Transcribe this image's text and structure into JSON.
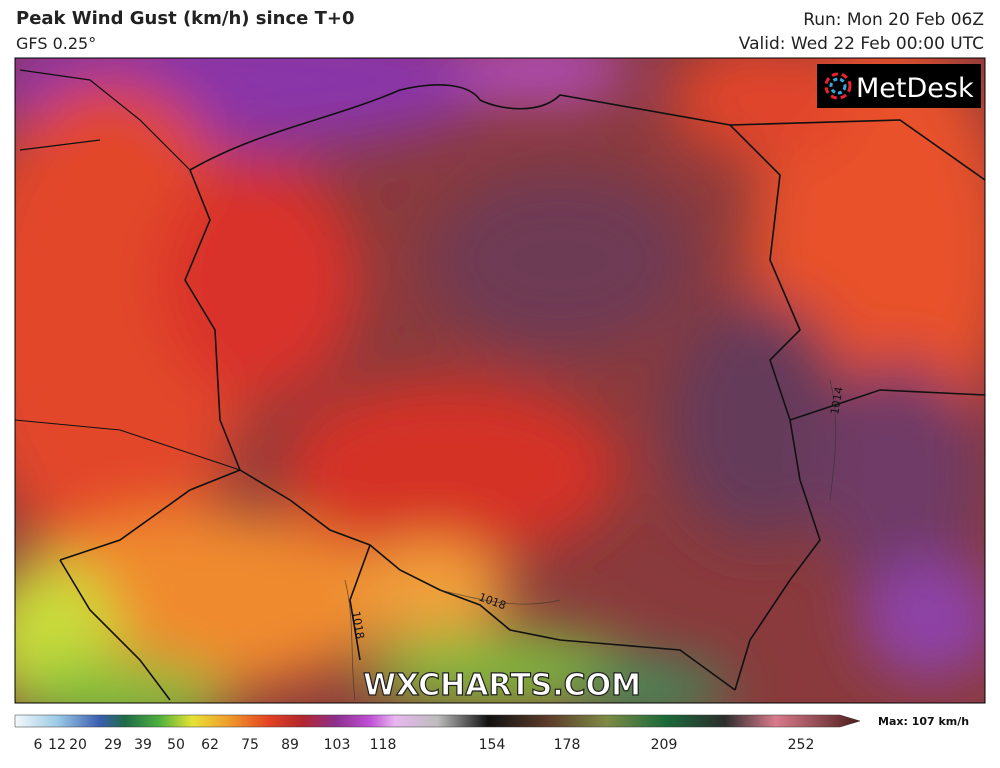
{
  "header": {
    "title": "Peak Wind Gust (km/h) since T+0",
    "model": "GFS 0.25°",
    "run": "Run: Mon 20 Feb 06Z",
    "valid": "Valid: Wed 22 Feb 00:00 UTC"
  },
  "map": {
    "logo": "MetDesk",
    "watermark": "WXCHARTS.COM",
    "isobar_labels": [
      "1018",
      "1018",
      "1014"
    ]
  },
  "colorbar": {
    "ticks": [
      6,
      12,
      20,
      29,
      39,
      50,
      62,
      75,
      89,
      103,
      118,
      154,
      178,
      209,
      252
    ],
    "max_label": "Max: 107 km/h"
  }
}
